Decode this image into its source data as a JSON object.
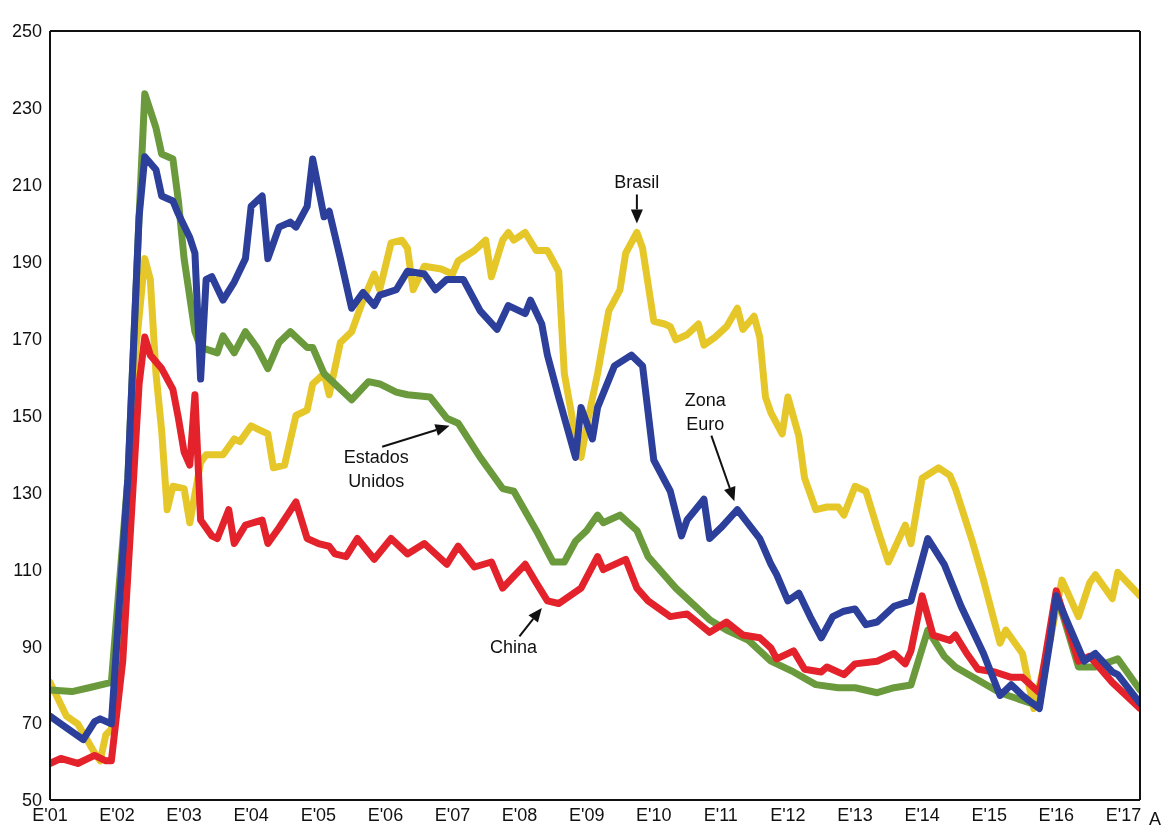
{
  "chart_data": {
    "type": "line",
    "xlim": [
      "2001-01",
      "2017-04"
    ],
    "ylim": [
      50,
      250
    ],
    "xticks": [
      {
        "value": "2001-01",
        "label": "E'01"
      },
      {
        "value": "2002-01",
        "label": "E'02"
      },
      {
        "value": "2003-01",
        "label": "E'03"
      },
      {
        "value": "2004-01",
        "label": "E'04"
      },
      {
        "value": "2005-01",
        "label": "E'05"
      },
      {
        "value": "2006-01",
        "label": "E'06"
      },
      {
        "value": "2007-01",
        "label": "E'07"
      },
      {
        "value": "2008-01",
        "label": "E'08"
      },
      {
        "value": "2009-01",
        "label": "E'09"
      },
      {
        "value": "2010-01",
        "label": "E'10"
      },
      {
        "value": "2011-01",
        "label": "E'11"
      },
      {
        "value": "2012-01",
        "label": "E'12"
      },
      {
        "value": "2013-01",
        "label": "E'13"
      },
      {
        "value": "2014-01",
        "label": "E'14"
      },
      {
        "value": "2015-01",
        "label": "E'15"
      },
      {
        "value": "2016-01",
        "label": "E'16"
      },
      {
        "value": "2017-01",
        "label": "E'17"
      }
    ],
    "yticks": [
      50,
      70,
      90,
      110,
      130,
      150,
      170,
      190,
      210,
      230,
      250
    ],
    "grid": false,
    "marker": "none",
    "line_style": "solid",
    "series": [
      {
        "name": "Brasil",
        "color": "#e6c72a",
        "x": [
          "2001-01",
          "2001-04",
          "2001-06",
          "2001-09",
          "2001-10",
          "2001-11",
          "2001-12",
          "2002-02",
          "2002-04",
          "2002-06",
          "2002-07",
          "2002-08",
          "2002-09",
          "2002-10",
          "2002-11",
          "2003-01",
          "2003-02",
          "2003-04",
          "2003-05",
          "2003-08",
          "2003-10",
          "2003-11",
          "2004-01",
          "2004-04",
          "2004-05",
          "2004-07",
          "2004-09",
          "2004-11",
          "2004-12",
          "2005-02",
          "2005-03",
          "2005-05",
          "2005-07",
          "2005-09",
          "2005-11",
          "2005-12",
          "2006-02",
          "2006-04",
          "2006-05",
          "2006-06",
          "2006-08",
          "2006-11",
          "2007-01",
          "2007-02",
          "2007-05",
          "2007-07",
          "2007-08",
          "2007-10",
          "2007-11",
          "2007-12",
          "2008-02",
          "2008-04",
          "2008-06",
          "2008-08",
          "2008-09",
          "2008-11",
          "2008-12",
          "2009-01",
          "2009-03",
          "2009-05",
          "2009-07",
          "2009-08",
          "2009-10",
          "2009-11",
          "2010-01",
          "2010-03",
          "2010-04",
          "2010-05",
          "2010-07",
          "2010-09",
          "2010-10",
          "2010-12",
          "2011-02",
          "2011-04",
          "2011-05",
          "2011-07",
          "2011-08",
          "2011-09",
          "2011-10",
          "2011-12",
          "2012-01",
          "2012-03",
          "2012-04",
          "2012-06",
          "2012-08",
          "2012-10",
          "2012-11",
          "2013-01",
          "2013-03",
          "2013-05",
          "2013-07",
          "2013-10",
          "2013-11",
          "2014-01",
          "2014-04",
          "2014-06",
          "2014-07",
          "2014-10",
          "2014-12",
          "2015-03",
          "2015-04",
          "2015-07",
          "2015-09",
          "2015-12",
          "2016-02",
          "2016-05",
          "2016-07",
          "2016-08",
          "2016-11",
          "2016-12",
          "2017-04"
        ],
        "values": [
          80.6,
          71.8,
          69.8,
          62.2,
          60.2,
          67,
          68.4,
          106.5,
          160.9,
          190.8,
          185.4,
          160.9,
          146,
          125.5,
          131.6,
          131,
          122.1,
          137.8,
          139.8,
          139.8,
          143.9,
          143.2,
          147.3,
          145.2,
          136.4,
          137.1,
          150,
          151.4,
          158.2,
          160.9,
          155.4,
          169,
          171.8,
          179.9,
          186.8,
          182.7,
          194.9,
          195.6,
          193.5,
          182.7,
          188.8,
          188.1,
          186.8,
          190.2,
          192.9,
          195.6,
          186.1,
          195.6,
          197.6,
          195.6,
          197.6,
          192.9,
          192.9,
          187.5,
          160.9,
          144.6,
          139.1,
          147.3,
          160.9,
          177.2,
          182.7,
          192.2,
          197.6,
          193.5,
          174.5,
          173.8,
          173.1,
          169.7,
          171,
          173.8,
          168.3,
          170.4,
          173.1,
          177.9,
          172.4,
          175.8,
          170.4,
          154.8,
          150.7,
          145.2,
          154.8,
          144.6,
          133.7,
          125.5,
          126.2,
          126.2,
          124.1,
          131.6,
          130.3,
          120.8,
          111.9,
          121.5,
          116.7,
          133.7,
          136.4,
          134.4,
          131,
          117.3,
          107.2,
          90.8,
          94.2,
          88.1,
          73.8,
          92.2,
          107.2,
          97.7,
          106.5,
          108.6,
          102.4,
          109.2,
          103.1
        ]
      },
      {
        "name": "Estados Unidos",
        "color": "#6b9a3d",
        "x": [
          "2001-01",
          "2001-05",
          "2001-08",
          "2001-12",
          "2002-03",
          "2002-05",
          "2002-06",
          "2002-08",
          "2002-09",
          "2002-11",
          "2002-12",
          "2003-01",
          "2003-03",
          "2003-04",
          "2003-07",
          "2003-08",
          "2003-10",
          "2003-12",
          "2004-02",
          "2004-04",
          "2004-06",
          "2004-08",
          "2004-11",
          "2004-12",
          "2005-02",
          "2005-07",
          "2005-10",
          "2005-12",
          "2006-03",
          "2006-05",
          "2006-09",
          "2006-12",
          "2007-02",
          "2007-06",
          "2007-10",
          "2007-12",
          "2008-04",
          "2008-07",
          "2008-09",
          "2008-11",
          "2009-01",
          "2009-03",
          "2009-04",
          "2009-07",
          "2009-10",
          "2009-12",
          "2010-05",
          "2010-08",
          "2010-11",
          "2011-02",
          "2011-06",
          "2011-10",
          "2012-02",
          "2012-06",
          "2012-10",
          "2013-01",
          "2013-05",
          "2013-08",
          "2013-11",
          "2014-02",
          "2014-05",
          "2014-07",
          "2014-11",
          "2015-03",
          "2015-07",
          "2015-10",
          "2016-01",
          "2016-05",
          "2016-08",
          "2016-12",
          "2017-04"
        ],
        "values": [
          78.6,
          78.2,
          79.2,
          80.6,
          133.7,
          201.7,
          233.7,
          224.8,
          218,
          216.7,
          205.8,
          190.8,
          171.8,
          167.7,
          166.3,
          170.7,
          166.3,
          171.8,
          167.7,
          162.2,
          169,
          171.8,
          167.7,
          167.7,
          160.9,
          154.1,
          158.8,
          158.2,
          156.1,
          155.4,
          154.8,
          149.3,
          148,
          139.1,
          131,
          130.3,
          120.1,
          111.9,
          111.9,
          117.3,
          120.1,
          124.1,
          122.1,
          124.1,
          120.1,
          113.3,
          105.1,
          101,
          96.9,
          94.2,
          91.5,
          86.1,
          83.3,
          80,
          79.2,
          79.2,
          77.9,
          79.2,
          79.9,
          94.2,
          87.4,
          84.6,
          81.2,
          77.9,
          75.9,
          74.5,
          103.8,
          84.6,
          84.6,
          86.7,
          78.6
        ]
      },
      {
        "name": "China",
        "color": "#e3222b",
        "x": [
          "2001-01",
          "2001-03",
          "2001-06",
          "2001-09",
          "2001-11",
          "2001-12",
          "2002-02",
          "2002-04",
          "2002-05",
          "2002-06",
          "2002-07",
          "2002-09",
          "2002-11",
          "2002-12",
          "2003-01",
          "2003-02",
          "2003-03",
          "2003-04",
          "2003-06",
          "2003-07",
          "2003-09",
          "2003-10",
          "2003-12",
          "2004-03",
          "2004-04",
          "2004-06",
          "2004-09",
          "2004-11",
          "2005-01",
          "2005-03",
          "2005-04",
          "2005-06",
          "2005-08",
          "2005-11",
          "2006-02",
          "2006-05",
          "2006-08",
          "2006-12",
          "2007-02",
          "2007-05",
          "2007-08",
          "2007-10",
          "2008-02",
          "2008-04",
          "2008-06",
          "2008-08",
          "2008-12",
          "2009-03",
          "2009-04",
          "2009-08",
          "2009-10",
          "2009-12",
          "2010-04",
          "2010-07",
          "2010-11",
          "2011-02",
          "2011-05",
          "2011-08",
          "2011-10",
          "2011-11",
          "2012-02",
          "2012-04",
          "2012-07",
          "2012-08",
          "2012-11",
          "2013-01",
          "2013-05",
          "2013-08",
          "2013-10",
          "2013-11",
          "2014-01",
          "2014-03",
          "2014-06",
          "2014-07",
          "2014-09",
          "2014-11",
          "2015-02",
          "2015-05",
          "2015-07",
          "2015-10",
          "2016-01",
          "2016-05",
          "2016-07",
          "2016-11",
          "2017-04"
        ],
        "values": [
          59.5,
          60.8,
          59.5,
          61.6,
          60.2,
          60.2,
          86.1,
          133.7,
          158.2,
          170.4,
          165.7,
          162.2,
          156.8,
          149.3,
          140.5,
          137.1,
          155.4,
          122.8,
          118.7,
          118,
          125.5,
          116.7,
          121.5,
          122.8,
          116.7,
          120.8,
          127.5,
          118,
          116.7,
          116,
          114,
          113.3,
          118,
          112.6,
          118,
          114,
          116.7,
          111.3,
          116,
          110.6,
          111.9,
          105.1,
          111.3,
          106.5,
          101.8,
          101.1,
          105.1,
          113.3,
          109.9,
          112.6,
          105.1,
          101.8,
          97.7,
          98.4,
          93.6,
          96.3,
          92.9,
          92.2,
          89.5,
          86.7,
          88.8,
          84,
          83.3,
          84.6,
          82.6,
          85.4,
          86.1,
          88.1,
          85.4,
          88.8,
          103.1,
          92.9,
          91.5,
          92.9,
          88.1,
          84,
          83.3,
          81.9,
          81.9,
          77.9,
          104.4,
          86.1,
          87.4,
          80.6,
          73.8
        ]
      },
      {
        "name": "Zona Euro",
        "color": "#2b3f9b",
        "x": [
          "2001-01",
          "2001-03",
          "2001-07",
          "2001-09",
          "2001-10",
          "2001-12",
          "2002-03",
          "2002-05",
          "2002-06",
          "2002-08",
          "2002-09",
          "2002-11",
          "2002-12",
          "2003-02",
          "2003-03",
          "2003-04",
          "2003-05",
          "2003-06",
          "2003-08",
          "2003-10",
          "2003-12",
          "2004-01",
          "2004-03",
          "2004-04",
          "2004-06",
          "2004-08",
          "2004-09",
          "2004-11",
          "2004-12",
          "2005-02",
          "2005-03",
          "2005-05",
          "2005-07",
          "2005-09",
          "2005-11",
          "2005-12",
          "2006-03",
          "2006-05",
          "2006-08",
          "2006-10",
          "2006-12",
          "2007-03",
          "2007-06",
          "2007-09",
          "2007-11",
          "2008-02",
          "2008-03",
          "2008-05",
          "2008-06",
          "2008-08",
          "2008-11",
          "2008-12",
          "2009-02",
          "2009-03",
          "2009-06",
          "2009-09",
          "2009-11",
          "2010-01",
          "2010-04",
          "2010-06",
          "2010-07",
          "2010-10",
          "2010-11",
          "2011-01",
          "2011-04",
          "2011-08",
          "2011-10",
          "2011-11",
          "2012-01",
          "2012-03",
          "2012-05",
          "2012-07",
          "2012-09",
          "2012-11",
          "2013-01",
          "2013-03",
          "2013-05",
          "2013-08",
          "2013-11",
          "2014-02",
          "2014-05",
          "2014-08",
          "2014-12",
          "2015-03",
          "2015-05",
          "2015-07",
          "2015-10",
          "2015-12",
          "2016-01",
          "2016-03",
          "2016-06",
          "2016-08",
          "2016-11",
          "2016-12",
          "2017-04"
        ],
        "values": [
          71.8,
          69.8,
          65.7,
          70.4,
          71.1,
          69.8,
          133.7,
          201.7,
          217.3,
          213.9,
          207.1,
          205.8,
          202.4,
          196.3,
          192.2,
          159.5,
          185.4,
          186.1,
          180,
          184.7,
          190.8,
          204.4,
          207.1,
          190.8,
          199,
          200.3,
          199,
          204.4,
          216.7,
          201.7,
          203.1,
          190.8,
          177.9,
          182,
          178.6,
          181.3,
          182.7,
          187.5,
          186.8,
          182.7,
          185.4,
          185.4,
          177.2,
          172.4,
          178.6,
          176.5,
          180,
          173.8,
          165.7,
          154.8,
          139.1,
          152.1,
          143.9,
          152.1,
          162.9,
          165.7,
          162.9,
          138.4,
          130.3,
          118.7,
          122.8,
          128.2,
          118,
          120.8,
          125.5,
          118,
          111.3,
          108.6,
          101.8,
          103.8,
          97.7,
          92.2,
          97.7,
          99.1,
          99.7,
          95.6,
          96.3,
          100.4,
          101.8,
          118,
          111.3,
          100.4,
          88.1,
          77.2,
          80,
          77.2,
          73.8,
          92.2,
          103.1,
          96.3,
          86.1,
          88.1,
          83.3,
          82.6,
          75.2
        ]
      }
    ],
    "annotations": [
      "A"
    ]
  }
}
